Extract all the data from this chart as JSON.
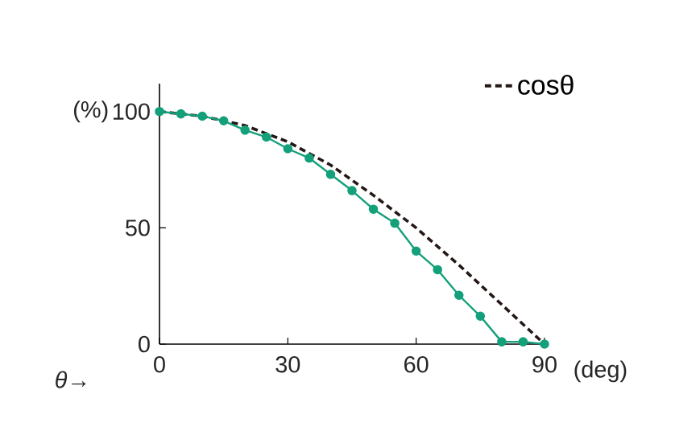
{
  "chart_data": {
    "type": "line",
    "xlabel": "(deg)",
    "ylabel": "(%)",
    "annotations": [
      "*θ*→"
    ],
    "series": [
      {
        "name": "cosθ",
        "color": "#231815",
        "line_style": "dashed",
        "marker": "none",
        "x": [
          0,
          10,
          20,
          30,
          40,
          50,
          60,
          70,
          80,
          90
        ],
        "values": [
          100,
          98,
          94,
          87,
          77,
          64,
          50,
          34,
          17,
          0
        ]
      },
      {
        "color": "#13a07a",
        "line_style": "solid",
        "marker": "circle",
        "x": [
          0,
          5,
          10,
          15,
          20,
          25,
          30,
          35,
          40,
          45,
          50,
          55,
          60,
          65,
          70,
          75,
          80,
          85,
          90
        ],
        "values": [
          100,
          99,
          98,
          96,
          92,
          89,
          84,
          80,
          73,
          66,
          58,
          52,
          40,
          32,
          21,
          12,
          1,
          1,
          0
        ]
      }
    ],
    "xlim": [
      0,
      90
    ],
    "ylim": [
      0,
      112
    ],
    "xticks": [
      0,
      30,
      60,
      90
    ],
    "yticks": [
      0,
      50,
      100
    ],
    "legend": "top right"
  }
}
